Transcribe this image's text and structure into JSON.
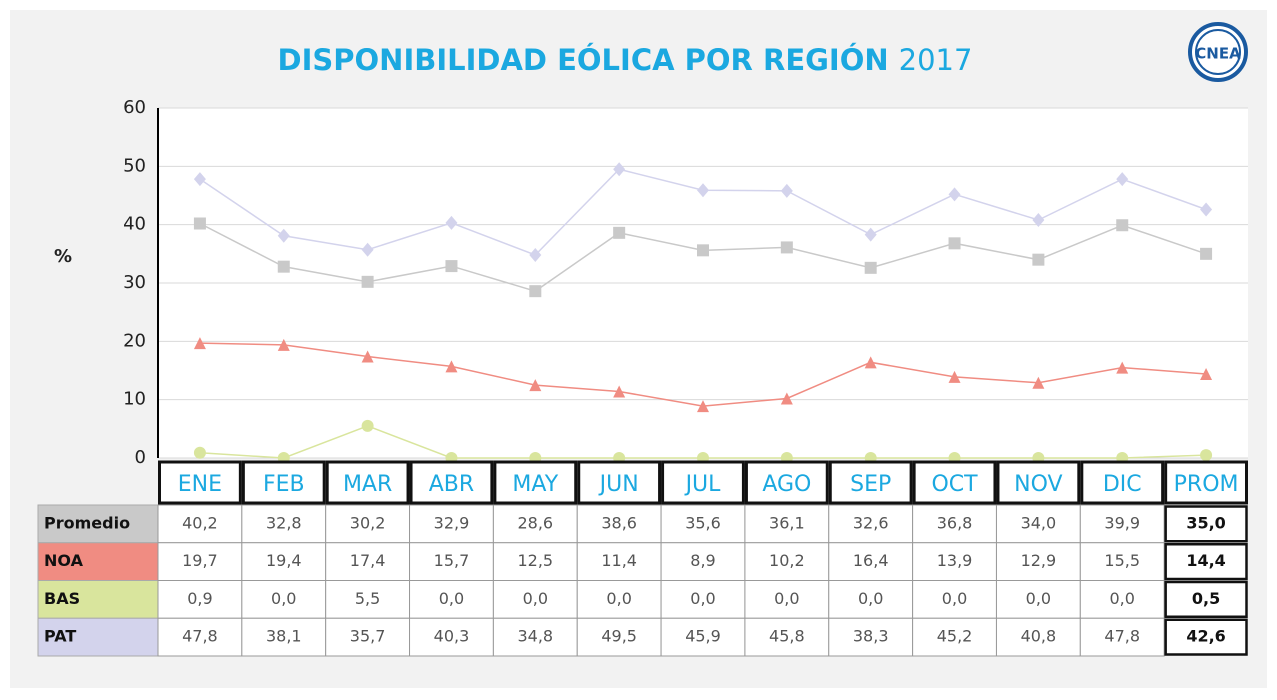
{
  "chart_data": {
    "type": "line",
    "title": "DISPONIBILIDAD EÓLICA POR REGIÓN",
    "subtitle": "2017",
    "logo": "CNEA",
    "ylabel": "%",
    "categories": [
      "ENE",
      "FEB",
      "MAR",
      "ABR",
      "MAY",
      "JUN",
      "JUL",
      "AGO",
      "SEP",
      "OCT",
      "NOV",
      "DIC",
      "PROM"
    ],
    "ylim": [
      0,
      60
    ],
    "yticks": [
      0,
      10,
      20,
      30,
      40,
      50,
      60
    ],
    "grid": true,
    "series": [
      {
        "name": "Promedio",
        "color": "#c9c9c9",
        "marker": "square",
        "values": [
          40.2,
          32.8,
          30.2,
          32.9,
          28.6,
          38.6,
          35.6,
          36.1,
          32.6,
          36.8,
          34.0,
          39.9,
          35.0
        ],
        "value_labels": [
          "40,2",
          "32,8",
          "30,2",
          "32,9",
          "28,6",
          "38,6",
          "35,6",
          "36,1",
          "32,6",
          "36,8",
          "34,0",
          "39,9",
          "35,0"
        ]
      },
      {
        "name": "NOA",
        "color": "#f08c82",
        "marker": "triangle",
        "values": [
          19.7,
          19.4,
          17.4,
          15.7,
          12.5,
          11.4,
          8.9,
          10.2,
          16.4,
          13.9,
          12.9,
          15.5,
          14.4
        ],
        "value_labels": [
          "19,7",
          "19,4",
          "17,4",
          "15,7",
          "12,5",
          "11,4",
          "8,9",
          "10,2",
          "16,4",
          "13,9",
          "12,9",
          "15,5",
          "14,4"
        ]
      },
      {
        "name": "BAS",
        "color": "#d9e59d",
        "marker": "circle",
        "values": [
          0.9,
          0.0,
          5.5,
          0.0,
          0.0,
          0.0,
          0.0,
          0.0,
          0.0,
          0.0,
          0.0,
          0.0,
          0.5
        ],
        "value_labels": [
          "0,9",
          "0,0",
          "5,5",
          "0,0",
          "0,0",
          "0,0",
          "0,0",
          "0,0",
          "0,0",
          "0,0",
          "0,0",
          "0,0",
          "0,5"
        ]
      },
      {
        "name": "PAT",
        "color": "#d3d3ec",
        "marker": "diamond",
        "values": [
          47.8,
          38.1,
          35.7,
          40.3,
          34.8,
          49.5,
          45.9,
          45.8,
          38.3,
          45.2,
          40.8,
          47.8,
          42.6
        ],
        "value_labels": [
          "47,8",
          "38,1",
          "35,7",
          "40,3",
          "34,8",
          "49,5",
          "45,9",
          "45,8",
          "38,3",
          "45,2",
          "40,8",
          "47,8",
          "42,6"
        ]
      }
    ]
  }
}
